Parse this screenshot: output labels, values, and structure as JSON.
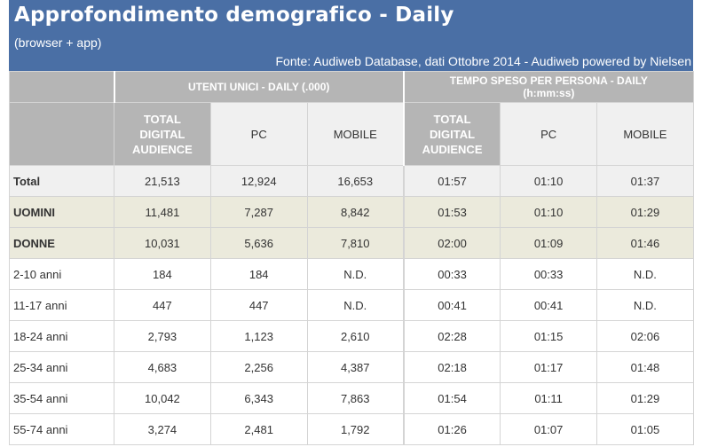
{
  "header": {
    "title": "Approfondimento demografico - Daily",
    "subtitle": "(browser + app)",
    "source": "Fonte: Audiweb Database, dati Ottobre 2014 - Audiweb powered by Nielsen"
  },
  "groups": {
    "users": "UTENTI UNICI - DAILY (.000)",
    "time_line1": "TEMPO SPESO PER PERSONA - DAILY",
    "time_line2": "(h:mm:ss)"
  },
  "columns": {
    "tda_line1": "TOTAL",
    "tda_line2": "DIGITAL",
    "tda_line3": "AUDIENCE",
    "pc": "PC",
    "mobile": "MOBILE"
  },
  "rows": [
    {
      "label": "Total",
      "values": [
        "21,513",
        "12,924",
        "16,653",
        "01:57",
        "01:10",
        "01:37"
      ]
    },
    {
      "label": "UOMINI",
      "values": [
        "11,481",
        "7,287",
        "8,842",
        "01:53",
        "01:10",
        "01:29"
      ]
    },
    {
      "label": "DONNE",
      "values": [
        "10,031",
        "5,636",
        "7,810",
        "02:00",
        "01:09",
        "01:46"
      ]
    },
    {
      "label": "2-10 anni",
      "values": [
        "184",
        "184",
        "N.D.",
        "00:33",
        "00:33",
        "N.D."
      ]
    },
    {
      "label": "11-17 anni",
      "values": [
        "447",
        "447",
        "N.D.",
        "00:41",
        "00:41",
        "N.D."
      ]
    },
    {
      "label": "18-24 anni",
      "values": [
        "2,793",
        "1,123",
        "2,610",
        "02:28",
        "01:15",
        "02:06"
      ]
    },
    {
      "label": "25-34 anni",
      "values": [
        "4,683",
        "2,256",
        "4,387",
        "02:18",
        "01:17",
        "01:48"
      ]
    },
    {
      "label": "35-54 anni",
      "values": [
        "10,042",
        "6,343",
        "7,863",
        "01:54",
        "01:11",
        "01:29"
      ]
    },
    {
      "label": "55-74 anni",
      "values": [
        "3,274",
        "2,481",
        "1,792",
        "01:26",
        "01:07",
        "01:05"
      ]
    }
  ]
}
